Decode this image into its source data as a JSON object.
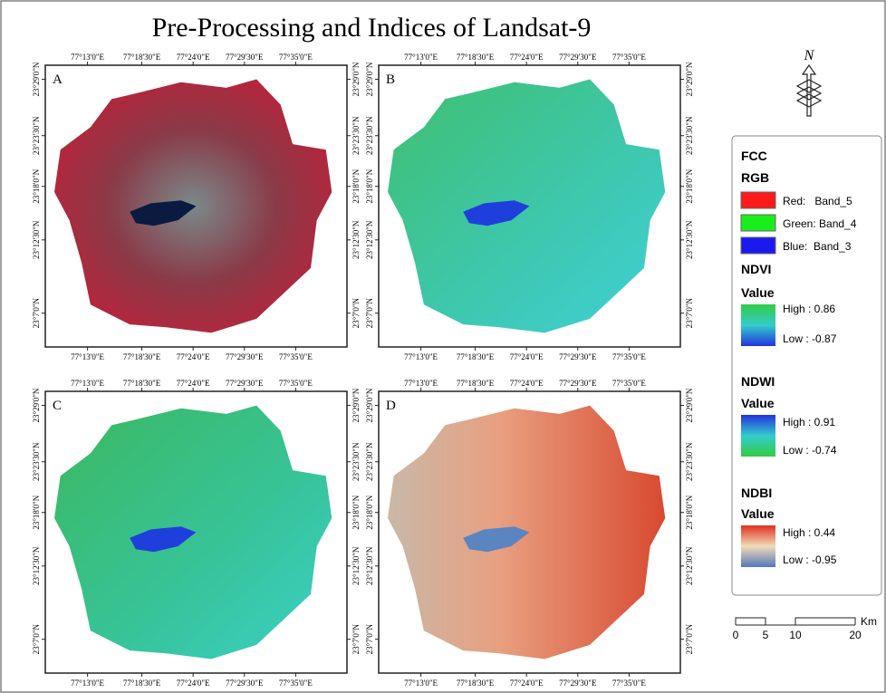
{
  "title": "Pre-Processing and Indices of Landsat-9",
  "panels": [
    {
      "label": "A"
    },
    {
      "label": "B"
    },
    {
      "label": "C"
    },
    {
      "label": "D"
    }
  ],
  "lon_ticks": [
    "77°13'0\"E",
    "77°18'30\"E",
    "77°24'0\"E",
    "77°29'30\"E",
    "77°35'0\"E"
  ],
  "lat_ticks": [
    "23°29'0\"N",
    "23°23'30\"N",
    "23°18'0\"N",
    "23°12'30\"N",
    "23°7'0\"N"
  ],
  "north": "N",
  "legend": {
    "fcc": {
      "title": "FCC",
      "subtitle": "RGB",
      "items": [
        "Red:   Band_5",
        "Green: Band_4",
        "Blue:  Band_3"
      ]
    },
    "ndvi": {
      "title": "NDVI",
      "value": "Value",
      "high": "High : 0.86",
      "low": "Low : -0.87"
    },
    "ndwi": {
      "title": "NDWI",
      "value": "Value",
      "high": "High : 0.91",
      "low": "Low : -0.74"
    },
    "ndbi": {
      "title": "NDBI",
      "value": "Value",
      "high": "High : 0.44",
      "low": "Low : -0.95"
    }
  },
  "scale_bar": {
    "labels": [
      "0",
      "5",
      "10",
      "20"
    ],
    "unit": "Km"
  }
}
